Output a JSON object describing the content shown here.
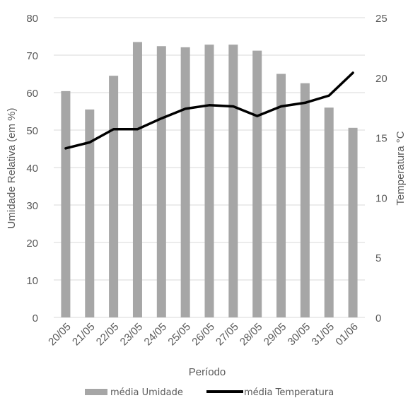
{
  "chart_data": {
    "type": "bar",
    "categories": [
      "20/05",
      "21/05",
      "22/05",
      "23/05",
      "24/05",
      "25/05",
      "26/05",
      "27/05",
      "28/05",
      "29/05",
      "30/05",
      "31/05",
      "01/06"
    ],
    "series": [
      {
        "name": "média Umidade",
        "type": "bar",
        "axis": "left",
        "color": "#a6a6a6",
        "values": [
          60.4,
          55.5,
          64.5,
          73.5,
          72.4,
          72.1,
          72.8,
          72.8,
          71.2,
          65.0,
          62.5,
          56.0,
          50.6
        ]
      },
      {
        "name": "média Temperatura",
        "type": "line",
        "axis": "right",
        "color": "#000000",
        "values": [
          14.1,
          14.6,
          15.7,
          15.7,
          16.6,
          17.4,
          17.7,
          17.6,
          16.8,
          17.6,
          17.9,
          18.5,
          20.4
        ]
      }
    ],
    "xlabel": "Período",
    "ylabel": "Umidade Relativa (em %)",
    "y2label": "Temperatura °C",
    "ylim": [
      0,
      80
    ],
    "y2lim": [
      0,
      25
    ],
    "yticks": [
      "0",
      "10",
      "20",
      "30",
      "40",
      "50",
      "60",
      "70",
      "80"
    ],
    "y2ticks": [
      "0",
      "5",
      "10",
      "15",
      "20",
      "25"
    ],
    "grid": true,
    "legend_position": "bottom"
  }
}
